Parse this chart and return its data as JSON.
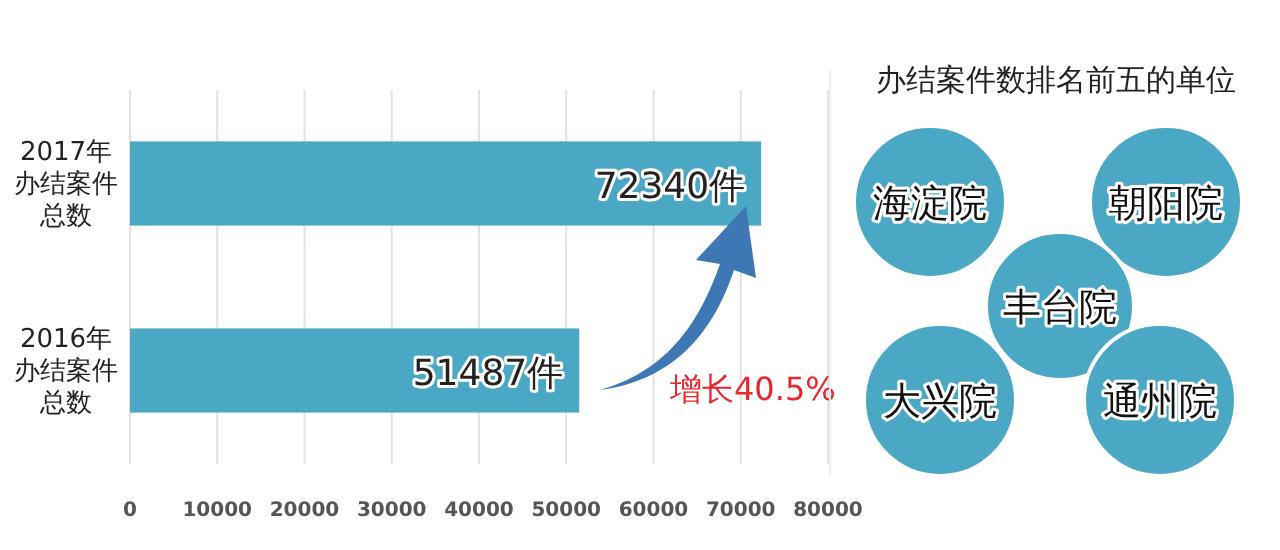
{
  "chart_data": [
    {
      "type": "bar",
      "orientation": "horizontal",
      "categories": [
        "2017年办结案件总数",
        "2016年办结案件总数"
      ],
      "values": [
        72340,
        51487
      ],
      "color": "#4aa8c4",
      "value_labels": [
        "72340件",
        "51487件"
      ],
      "xlim": [
        0,
        80000
      ],
      "xticks": [
        0,
        10000,
        20000,
        30000,
        40000,
        50000,
        60000,
        70000,
        80000
      ],
      "grid": "x",
      "annotations": [
        "增长40.5%"
      ]
    },
    {
      "type": "other",
      "title": "办结案件数排名前五的单位",
      "categories": [
        "海淀院",
        "朝阳院",
        "丰台院",
        "大兴院",
        "通州院"
      ]
    }
  ]
}
